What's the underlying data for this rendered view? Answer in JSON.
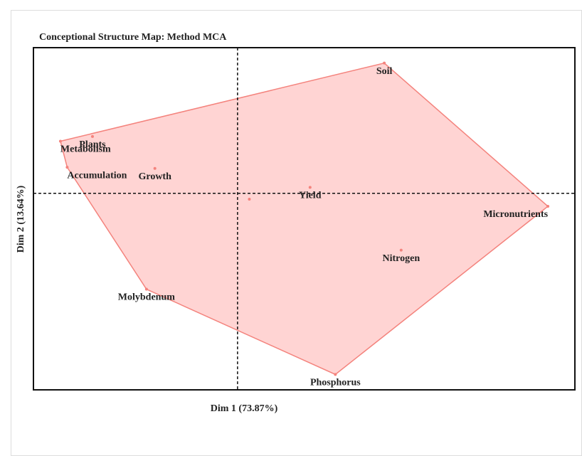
{
  "chart_data": {
    "type": "scatter",
    "title": "Conceptional Structure Map: Method MCA",
    "xlabel": "Dim 1 (73.87%)",
    "ylabel": "Dim 2 (13.64%)",
    "categories": [
      "Soil",
      "Plants",
      "Metabolism",
      "Accumulation",
      "Growth",
      "Yield",
      null,
      "Micronutrients",
      "Nitrogen",
      "Molybdenum",
      "Phosphorus"
    ],
    "x": [
      0.87,
      -0.86,
      -1.05,
      -1.01,
      -0.49,
      0.43,
      0.07,
      1.84,
      0.97,
      -0.54,
      0.58
    ],
    "values": [
      1.1,
      0.48,
      0.44,
      0.22,
      0.21,
      0.05,
      -0.05,
      -0.11,
      -0.48,
      -0.81,
      -1.53
    ],
    "color": "#f4837d",
    "xlim": [
      -1.21,
      2.0
    ],
    "ylim": [
      -1.66,
      1.23
    ]
  }
}
